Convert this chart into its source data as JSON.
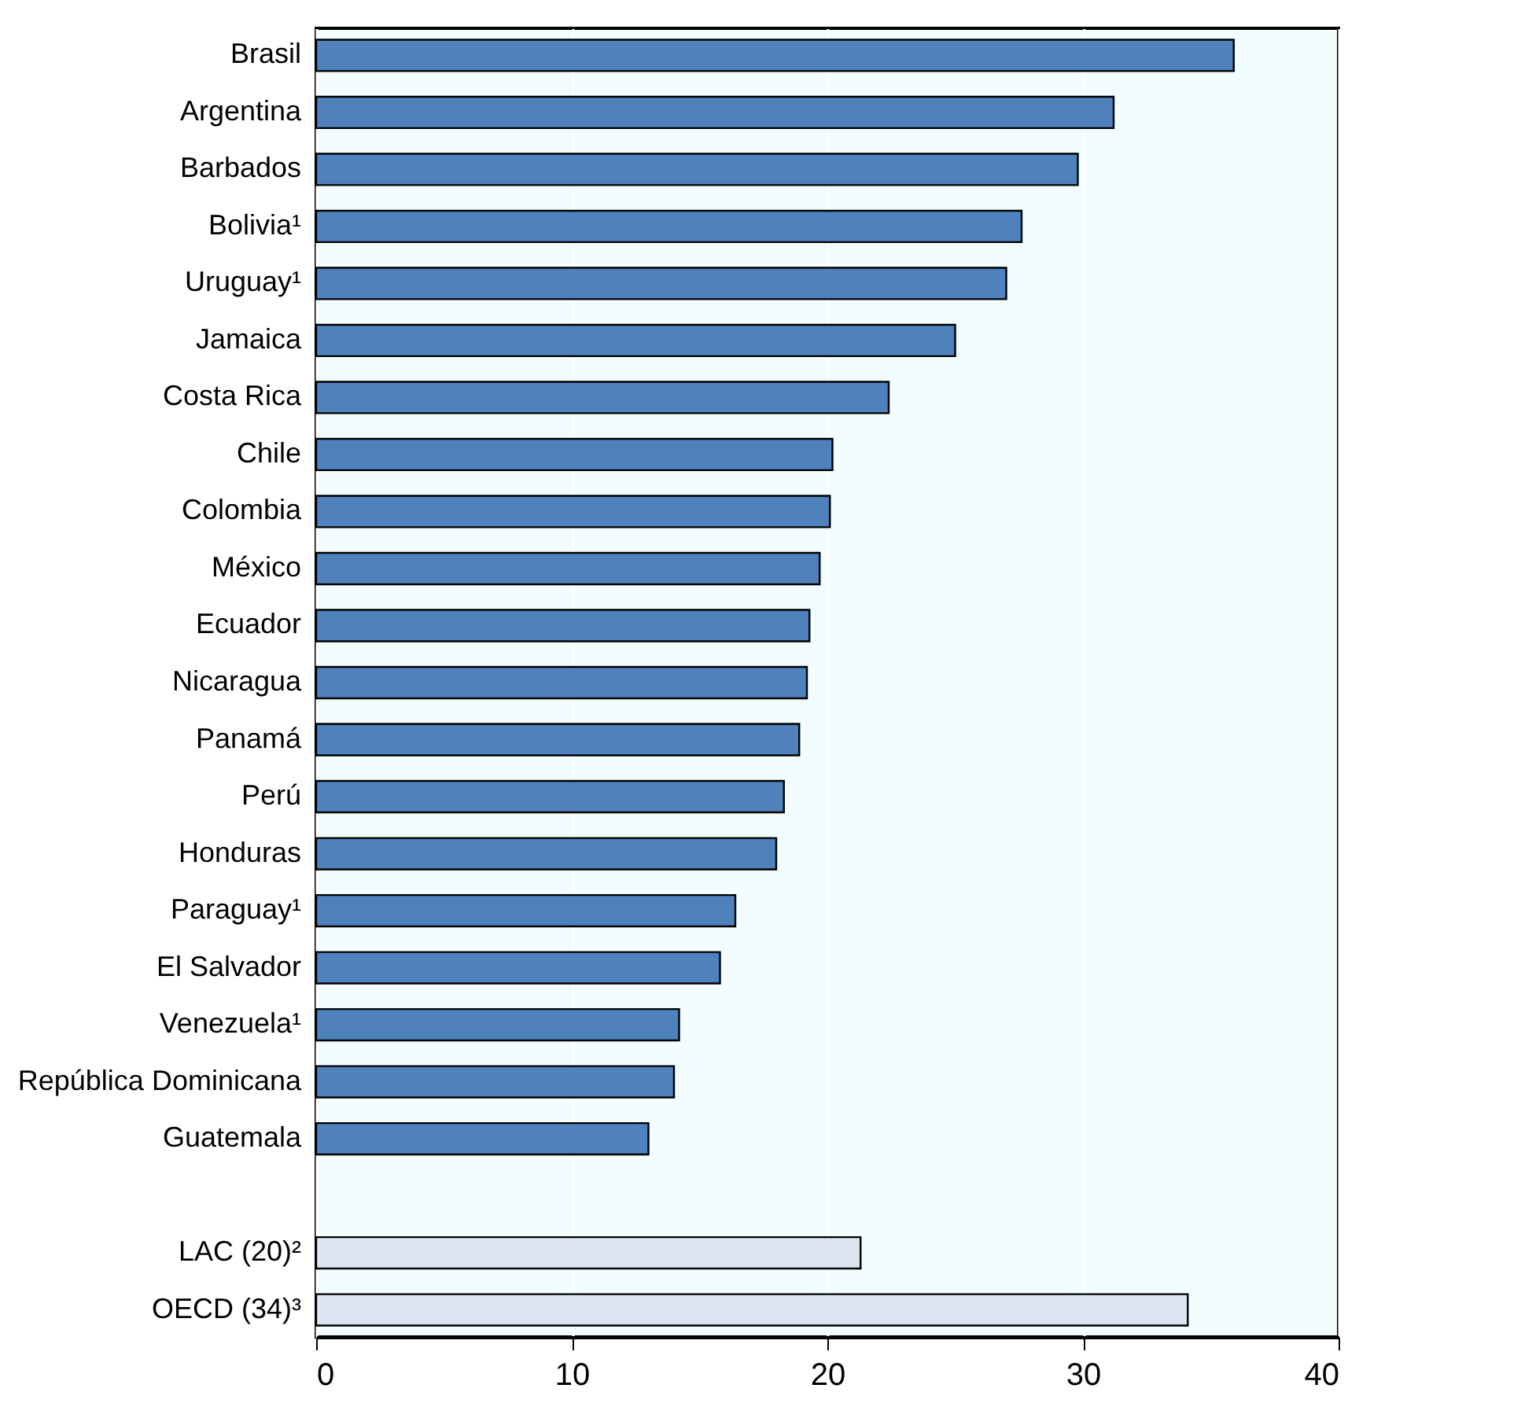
{
  "chart_data": {
    "type": "bar",
    "orientation": "horizontal",
    "categories": [
      "Brasil",
      "Argentina",
      "Barbados",
      "Bolivia¹",
      "Uruguay¹",
      "Jamaica",
      "Costa Rica",
      "Chile",
      "Colombia",
      "México",
      "Ecuador",
      "Nicaragua",
      "Panamá",
      "Perú",
      "Honduras",
      "Paraguay¹",
      "El Salvador",
      "Venezuela¹",
      "República Dominicana",
      "Guatemala",
      null,
      "LAC (20)²",
      "OECD (34)³"
    ],
    "values": [
      35.9,
      31.2,
      29.8,
      27.6,
      27.0,
      25.0,
      22.4,
      20.2,
      20.1,
      19.7,
      19.3,
      19.2,
      18.9,
      18.3,
      18.0,
      16.4,
      15.8,
      14.2,
      14.0,
      13.0,
      null,
      21.3,
      34.1
    ],
    "colors": [
      "#4f81bd",
      "#4f81bd",
      "#4f81bd",
      "#4f81bd",
      "#4f81bd",
      "#4f81bd",
      "#4f81bd",
      "#4f81bd",
      "#4f81bd",
      "#4f81bd",
      "#4f81bd",
      "#4f81bd",
      "#4f81bd",
      "#4f81bd",
      "#4f81bd",
      "#4f81bd",
      "#4f81bd",
      "#4f81bd",
      "#4f81bd",
      "#4f81bd",
      "#4f81bd",
      "#dce6f2",
      "#dce6f2"
    ],
    "xlim": [
      0,
      40
    ],
    "xticks": [
      0,
      10,
      20,
      30,
      40
    ],
    "grid": "x"
  }
}
